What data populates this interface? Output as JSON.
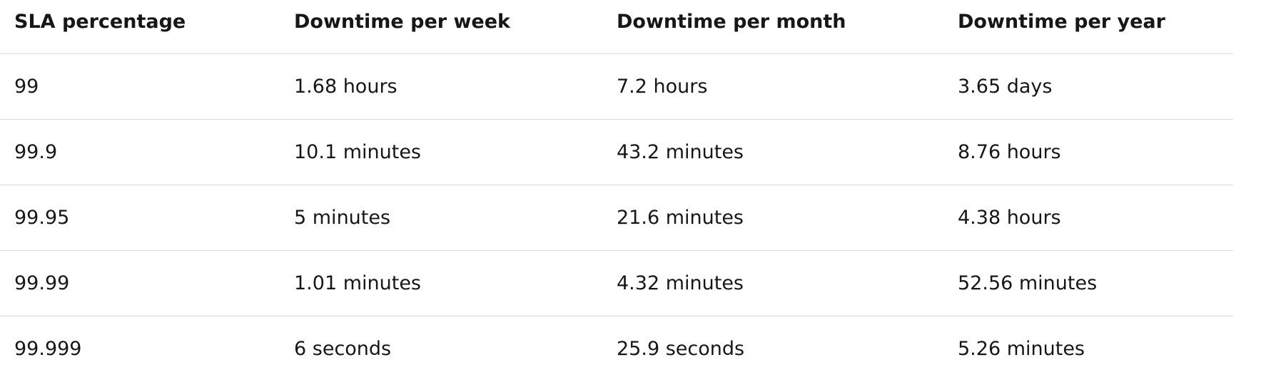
{
  "table": {
    "headers": [
      "SLA percentage",
      "Downtime per week",
      "Downtime per month",
      "Downtime per year"
    ],
    "rows": [
      [
        "99",
        "1.68 hours",
        "7.2 hours",
        "3.65 days"
      ],
      [
        "99.9",
        "10.1 minutes",
        "43.2 minutes",
        "8.76 hours"
      ],
      [
        "99.95",
        "5 minutes",
        "21.6 minutes",
        "4.38 hours"
      ],
      [
        "99.99",
        "1.01 minutes",
        "4.32 minutes",
        "52.56 minutes"
      ],
      [
        "99.999",
        "6 seconds",
        "25.9 seconds",
        "5.26 minutes"
      ]
    ]
  },
  "colors": {
    "text": "#171717",
    "divider": "#d9d9d9",
    "background": "#ffffff"
  }
}
